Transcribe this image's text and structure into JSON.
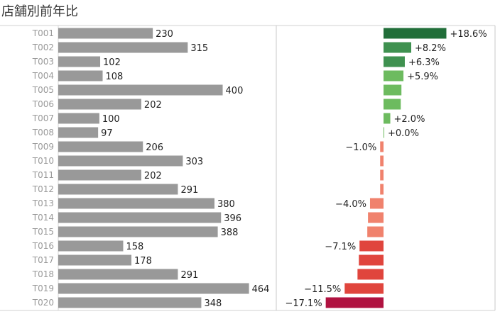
{
  "title": "店舗別前年比",
  "chart_data": [
    {
      "type": "bar",
      "orientation": "horizontal",
      "categories": [
        "T001",
        "T002",
        "T003",
        "T004",
        "T005",
        "T006",
        "T007",
        "T008",
        "T009",
        "T010",
        "T011",
        "T012",
        "T013",
        "T014",
        "T015",
        "T016",
        "T017",
        "T018",
        "T019",
        "T020"
      ],
      "values": [
        230,
        315,
        102,
        108,
        400,
        202,
        100,
        97,
        206,
        303,
        202,
        291,
        380,
        396,
        388,
        158,
        178,
        291,
        464,
        348
      ],
      "data_labels": [
        "230",
        "315",
        "102",
        "108",
        "400",
        "202",
        "100",
        "97",
        "206",
        "303",
        "202",
        "291",
        "380",
        "396",
        "388",
        "158",
        "178",
        "291",
        "464",
        "348"
      ],
      "xlim": [
        0,
        520
      ],
      "grid": false,
      "colors": {
        "bar": "#999999"
      }
    },
    {
      "type": "bar",
      "orientation": "horizontal",
      "categories": [
        "T001",
        "T002",
        "T003",
        "T004",
        "T005",
        "T006",
        "T007",
        "T008",
        "T009",
        "T010",
        "T011",
        "T012",
        "T013",
        "T014",
        "T015",
        "T016",
        "T017",
        "T018",
        "T019",
        "T020"
      ],
      "values": [
        18.6,
        8.2,
        6.3,
        5.9,
        5.3,
        5.1,
        2.0,
        0.0,
        -1.0,
        -1.0,
        -1.0,
        -1.0,
        -4.0,
        -4.6,
        -4.8,
        -7.1,
        -7.3,
        -7.7,
        -11.5,
        -17.1
      ],
      "data_labels": [
        "+18.6%",
        "+8.2%",
        "+6.3%",
        "+5.9%",
        "",
        "",
        "+2.0%",
        "+0.0%",
        "−1.0%",
        "",
        "",
        "",
        "−4.0%",
        "",
        "",
        "−7.1%",
        "",
        "",
        "−11.5%",
        "−17.1%"
      ],
      "xlim": [
        -33,
        33
      ],
      "grid": false,
      "colors": {
        "pos_dark": "#216e39",
        "pos_mid": "#3f9150",
        "pos_light": "#6dbb5f",
        "neg_light": "#f0826d",
        "neg_mid": "#e0453d",
        "neg_dark": "#b01240"
      }
    }
  ]
}
